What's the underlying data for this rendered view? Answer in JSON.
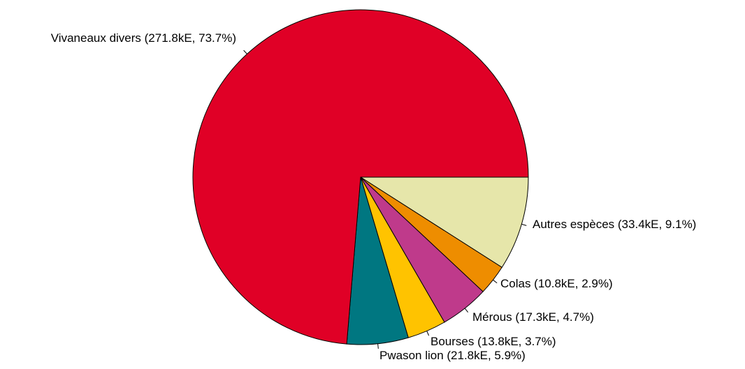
{
  "chart_data": {
    "type": "pie",
    "start_angle_deg": 0,
    "direction": "clockwise",
    "slices": [
      {
        "label": "Autres espèces (33.4kE, 9.1%)",
        "value": 33.4,
        "percent": 9.1,
        "color": "#E6E6AA"
      },
      {
        "label": "Colas (10.8kE, 2.9%)",
        "value": 10.8,
        "percent": 2.9,
        "color": "#EE8D00"
      },
      {
        "label": "Mérous (17.3kE, 4.7%)",
        "value": 17.3,
        "percent": 4.7,
        "color": "#BF3A8B"
      },
      {
        "label": "Bourses (13.8kE, 3.7%)",
        "value": 13.8,
        "percent": 3.7,
        "color": "#FFC300"
      },
      {
        "label": "Pwason lion (21.8kE, 5.9%)",
        "value": 21.8,
        "percent": 5.9,
        "color": "#007781"
      },
      {
        "label": "Vivaneaux divers (271.8kE, 73.7%)",
        "value": 271.8,
        "percent": 73.7,
        "color": "#E00026"
      }
    ]
  }
}
